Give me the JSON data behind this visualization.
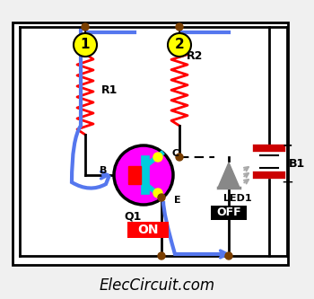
{
  "bg_color": "#f0f0f0",
  "wire_color": "#000000",
  "blue_wire_color": "#5577ee",
  "red_resistor_color": "#ff0000",
  "transistor_circle_color": "#ff00ff",
  "node_color": "#7B3F00",
  "title_text": "ElecCircuit.com",
  "label1": "1",
  "label2": "2",
  "label_R1": "R1",
  "label_R2": "R2",
  "label_Q1": "Q1",
  "label_B": "B",
  "label_C": "C",
  "label_E": "E",
  "label_LED1": "LED1",
  "label_B1": "B1",
  "label_ON": "ON",
  "label_OFF": "OFF",
  "on_bg": "#ff0000",
  "off_bg": "#000000",
  "battery_red": "#cc0000",
  "cyan_color": "#00ccdd",
  "yellow_color": "#ffff00",
  "gray_led": "#888888"
}
